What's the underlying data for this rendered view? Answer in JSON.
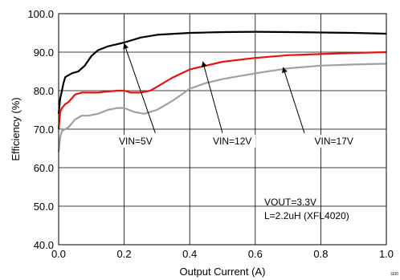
{
  "chart_data": {
    "type": "line",
    "title": "",
    "xlabel": "Output Current (A)",
    "ylabel": "Efficiency (%)",
    "xlim": [
      0.0,
      1.0
    ],
    "ylim": [
      40.0,
      100.0
    ],
    "xticks": [
      0.0,
      0.2,
      0.4,
      0.6,
      0.8,
      1.0
    ],
    "xtick_labels": [
      "0.0",
      "0.2",
      "0.4",
      "0.6",
      "0.8",
      "1.0"
    ],
    "yticks": [
      40,
      50,
      60,
      70,
      80,
      90,
      100
    ],
    "ytick_labels": [
      "40.0",
      "50.0",
      "60.0",
      "70.0",
      "80.0",
      "90.0",
      "100.0"
    ],
    "grid": true,
    "legend": "none",
    "series": [
      {
        "color": "#000000",
        "x": [
          0.0,
          0.005,
          0.01,
          0.015,
          0.02,
          0.03,
          0.04,
          0.06,
          0.08,
          0.1,
          0.12,
          0.15,
          0.2,
          0.25,
          0.3,
          0.4,
          0.5,
          0.6,
          0.7,
          0.8,
          0.9,
          1.0
        ],
        "y": [
          74.0,
          78.0,
          80.0,
          82.0,
          83.5,
          84.0,
          84.5,
          85.0,
          86.5,
          89.0,
          90.5,
          91.5,
          92.5,
          93.8,
          94.5,
          95.0,
          95.2,
          95.3,
          95.2,
          95.1,
          95.0,
          94.8
        ]
      },
      {
        "color": "#e8120f",
        "x": [
          0.0,
          0.005,
          0.01,
          0.02,
          0.03,
          0.05,
          0.07,
          0.09,
          0.12,
          0.15,
          0.18,
          0.2,
          0.22,
          0.25,
          0.28,
          0.3,
          0.35,
          0.4,
          0.45,
          0.5,
          0.6,
          0.7,
          0.8,
          0.9,
          1.0
        ],
        "y": [
          70.0,
          74.5,
          75.5,
          76.5,
          77.0,
          79.0,
          79.5,
          79.5,
          79.5,
          79.8,
          80.0,
          80.0,
          79.5,
          79.5,
          80.0,
          81.0,
          83.5,
          85.5,
          86.5,
          87.5,
          88.5,
          89.2,
          89.5,
          89.8,
          90.0
        ]
      },
      {
        "color": "#a0a0a0",
        "x": [
          0.0,
          0.005,
          0.01,
          0.02,
          0.03,
          0.05,
          0.07,
          0.09,
          0.12,
          0.15,
          0.18,
          0.2,
          0.23,
          0.26,
          0.3,
          0.35,
          0.4,
          0.45,
          0.5,
          0.6,
          0.7,
          0.8,
          0.9,
          1.0
        ],
        "y": [
          64.0,
          68.0,
          69.5,
          70.0,
          70.5,
          72.5,
          73.5,
          73.5,
          74.0,
          75.0,
          75.5,
          75.5,
          74.5,
          74.0,
          75.0,
          77.5,
          80.5,
          82.0,
          83.0,
          84.5,
          85.8,
          86.5,
          86.8,
          87.0
        ]
      }
    ],
    "annotations": [
      {
        "label": "VIN=5V",
        "text_at": [
          0.235,
          66.0
        ],
        "arrow_from": [
          0.295,
          69.0
        ],
        "arrow_to": [
          0.2,
          92.2
        ]
      },
      {
        "label": "VIN=12V",
        "text_at": [
          0.53,
          66.0
        ],
        "arrow_from": [
          0.5,
          69.0
        ],
        "arrow_to": [
          0.44,
          87.5
        ]
      },
      {
        "label": "VIN=17V",
        "text_at": [
          0.84,
          66.0
        ],
        "arrow_from": [
          0.75,
          69.0
        ],
        "arrow_to": [
          0.685,
          86.0
        ]
      }
    ],
    "notes": [
      "VOUT=3.3V",
      "L=2.2uH (XFL4020)"
    ],
    "corner_label": "G00"
  }
}
